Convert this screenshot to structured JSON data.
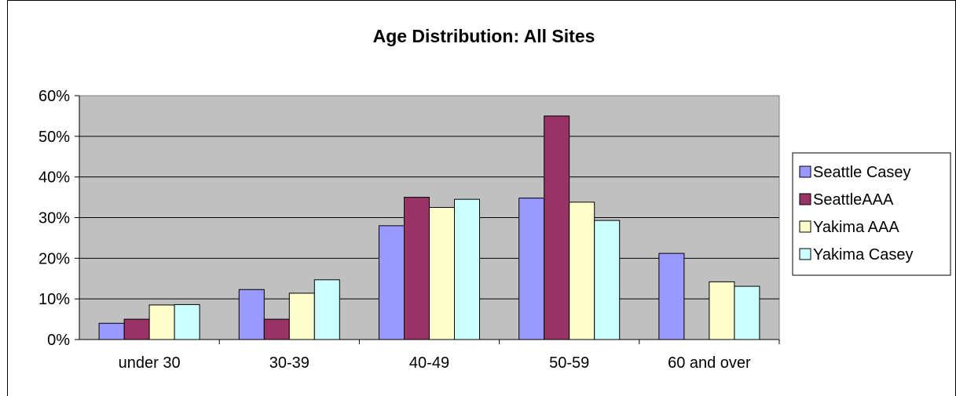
{
  "chart_data": {
    "type": "bar",
    "title": "Age Distribution: All Sites",
    "xlabel": "",
    "ylabel": "",
    "categories": [
      "under 30",
      "30-39",
      "40-49",
      "50-59",
      "60 and over"
    ],
    "series": [
      {
        "name": "Seattle Casey",
        "color": "#9999ff",
        "values": [
          4,
          12.3,
          28,
          34.8,
          21.2
        ]
      },
      {
        "name": "SeattleAAA",
        "color": "#993366",
        "values": [
          5,
          5,
          35,
          55,
          0
        ]
      },
      {
        "name": "Yakima AAA",
        "color": "#ffffcc",
        "values": [
          8.5,
          11.4,
          32.5,
          33.8,
          14.2
        ]
      },
      {
        "name": "Yakima Casey",
        "color": "#ccffff",
        "values": [
          8.6,
          14.7,
          34.5,
          29.3,
          13.1
        ]
      }
    ],
    "ylim": [
      0,
      60
    ],
    "yticks": [
      "0%",
      "10%",
      "20%",
      "30%",
      "40%",
      "50%",
      "60%"
    ],
    "yunit": "%",
    "grid": true,
    "plot_background": "#c0c0c0",
    "legend_position": "right"
  }
}
